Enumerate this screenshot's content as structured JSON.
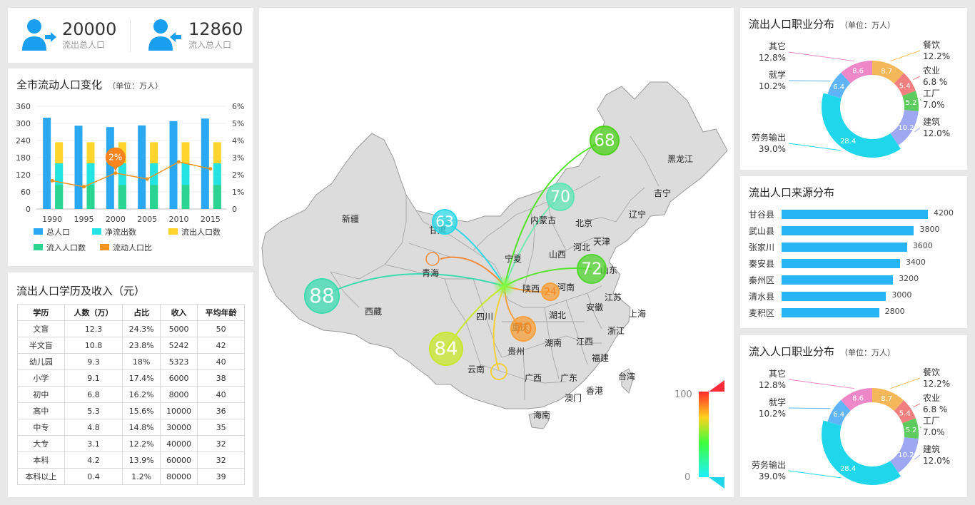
{
  "stats": {
    "outflow": {
      "value": "20000",
      "label": "流出总人口"
    },
    "inflow": {
      "value": "12860",
      "label": "流入总人口"
    }
  },
  "trend": {
    "title": "全市流动人口变化",
    "unit": "（单位：万人）",
    "callout": "2%",
    "chart_data": {
      "type": "bar",
      "categories": [
        "1990",
        "1995",
        "2000",
        "2005",
        "2010",
        "2015"
      ],
      "series": [
        {
          "name": "总人口",
          "values": [
            320,
            292,
            287,
            293,
            308,
            317
          ],
          "color": "#2aa8f2"
        },
        {
          "name": "净流出数",
          "values": [
            160,
            160,
            160,
            160,
            160,
            160
          ],
          "color": "#23e3e3"
        },
        {
          "name": "流出人口数",
          "values": [
            234,
            234,
            234,
            234,
            234,
            234
          ],
          "color": "#ffd52d"
        },
        {
          "name": "流入人口数",
          "values": [
            84,
            84,
            84,
            84,
            84,
            84
          ],
          "color": "#2bd591"
        },
        {
          "name": "流动人口比",
          "values": [
            1.65,
            1.3,
            2.1,
            1.75,
            2.75,
            2.35
          ],
          "color": "#f7941d",
          "axis": "right"
        }
      ],
      "y_ticks": [
        "360",
        "300",
        "240",
        "180",
        "120",
        "60",
        "0"
      ],
      "y2_ticks": [
        "6%",
        "5%",
        "4%",
        "3%",
        "2%",
        "1%",
        "0"
      ],
      "ylim": [
        0,
        360
      ],
      "y2lim": [
        0,
        6
      ]
    }
  },
  "edu": {
    "title": "流出人口学历及收入（元）",
    "columns": [
      "学历",
      "人数（万）",
      "占比",
      "收入",
      "平均年龄"
    ],
    "rows": [
      [
        "文盲",
        "12.3",
        "24.3%",
        "5000",
        "50"
      ],
      [
        "半文盲",
        "10.8",
        "23.8%",
        "5242",
        "42"
      ],
      [
        "幼儿园",
        "9.3",
        "18%",
        "5323",
        "40"
      ],
      [
        "小学",
        "9.1",
        "17.4%",
        "6000",
        "38"
      ],
      [
        "初中",
        "6.8",
        "16.2%",
        "8000",
        "40"
      ],
      [
        "高中",
        "5.3",
        "15.6%",
        "10000",
        "36"
      ],
      [
        "中专",
        "4.8",
        "14.8%",
        "30000",
        "35"
      ],
      [
        "大专",
        "3.1",
        "12.2%",
        "40000",
        "32"
      ],
      [
        "本科",
        "4.2",
        "13.9%",
        "60000",
        "32"
      ],
      [
        "本科以上",
        "0.4",
        "1.2%",
        "80000",
        "39"
      ]
    ]
  },
  "map": {
    "provinces": [
      "黑龙江",
      "吉宁",
      "辽宁",
      "内蒙古",
      "北京",
      "天津",
      "河北",
      "山西",
      "山东",
      "宁夏",
      "甘肃",
      "新疆",
      "青海",
      "西藏",
      "陕西",
      "河南",
      "江苏",
      "安徽",
      "上海",
      "湖北",
      "四川",
      "重庆",
      "浙江",
      "湖南",
      "江西",
      "贵州",
      "云南",
      "福建",
      "广西",
      "广东",
      "台湾",
      "香港",
      "澳门",
      "海南"
    ],
    "bubbles": [
      {
        "value": "68",
        "color": "#4cd21a"
      },
      {
        "value": "70",
        "color": "#5fe5b5"
      },
      {
        "value": "63",
        "color": "#2ad8e6"
      },
      {
        "value": "72",
        "color": "#52d630"
      },
      {
        "value": "88",
        "color": "#3ddcb0"
      },
      {
        "value": "84",
        "color": "#c9e82c"
      },
      {
        "value": "24",
        "color": "#f7a03a"
      },
      {
        "value": "70",
        "color": "#f7a03a"
      }
    ],
    "scale_max": "100",
    "scale_min": "0"
  },
  "outJobs": {
    "title": "流出人口职业分布",
    "unit": "（单位：万人）",
    "chart_data": {
      "type": "pie",
      "slices": [
        {
          "name": "餐饮",
          "pct": "12.2%",
          "value": 8.7,
          "color": "#f4b85a"
        },
        {
          "name": "农业",
          "pct": "6.8 %",
          "value": 5.4,
          "color": "#f17f7f"
        },
        {
          "name": "工厂",
          "pct": "7.0%",
          "value": 5.2,
          "color": "#5ecb5e"
        },
        {
          "name": "建筑",
          "pct": "12.0%",
          "value": 10.2,
          "color": "#9ea7f2"
        },
        {
          "name": "劳务输出",
          "pct": "39.0%",
          "value": 28.4,
          "color": "#1fd6eb"
        },
        {
          "name": "就学",
          "pct": "10.2%",
          "value": 6.4,
          "color": "#5fb4f7"
        },
        {
          "name": "其它",
          "pct": "12.8%",
          "value": 8.6,
          "color": "#ee87c8"
        }
      ]
    }
  },
  "source": {
    "title": "流出人口来源分布",
    "chart_data": {
      "type": "bar",
      "categories": [
        "甘谷县",
        "武山县",
        "张家川",
        "秦安县",
        "秦州区",
        "清水县",
        "麦积区"
      ],
      "values": [
        4200,
        3800,
        3600,
        3400,
        3200,
        3000,
        2800
      ],
      "max": 4200
    }
  },
  "inJobs": {
    "title": "流入人口职业分布",
    "unit": "（单位：万人）",
    "chart_data": {
      "type": "pie",
      "slices": [
        {
          "name": "餐饮",
          "pct": "12.2%",
          "value": 8.7,
          "color": "#f4b85a"
        },
        {
          "name": "农业",
          "pct": "6.8 %",
          "value": 5.4,
          "color": "#f17f7f"
        },
        {
          "name": "工厂",
          "pct": "7.0%",
          "value": 5.2,
          "color": "#5ecb5e"
        },
        {
          "name": "建筑",
          "pct": "12.0%",
          "value": 10.2,
          "color": "#9ea7f2"
        },
        {
          "name": "劳务输出",
          "pct": "39.0%",
          "value": 28.4,
          "color": "#1fd6eb"
        },
        {
          "name": "就学",
          "pct": "10.2%",
          "value": 6.4,
          "color": "#5fb4f7"
        },
        {
          "name": "其它",
          "pct": "12.8%",
          "value": 8.6,
          "color": "#ee87c8"
        }
      ]
    }
  }
}
